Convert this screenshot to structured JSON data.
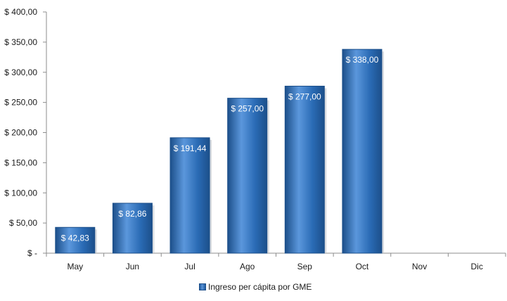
{
  "chart_data": {
    "type": "bar",
    "categories": [
      "May",
      "Jun",
      "Jul",
      "Ago",
      "Sep",
      "Oct",
      "Nov",
      "Dic"
    ],
    "series": [
      {
        "name": "Ingreso per cápita por GME",
        "values": [
          42.83,
          82.86,
          191.44,
          257.0,
          277.0,
          338.0,
          null,
          null
        ],
        "labels": [
          "$ 42,83",
          "$ 82,86",
          "$ 191,44",
          "$ 257,00",
          "$ 277,00",
          "$ 338,00",
          null,
          null
        ]
      }
    ],
    "ylim": [
      0,
      400
    ],
    "yticks": [
      0,
      50,
      100,
      150,
      200,
      250,
      300,
      350,
      400
    ],
    "ytick_labels": [
      "$ -",
      "$ 50,00",
      "$ 100,00",
      "$ 150,00",
      "$ 200,00",
      "$ 250,00",
      "$ 300,00",
      "$ 350,00",
      "$ 400,00"
    ],
    "legend_position": "bottom",
    "grid": false,
    "colors": {
      "bar": "#2a6bb5",
      "bar_light": "#5b97dc",
      "bar_dark": "#1c4f8a",
      "axis": "#8c8c8c"
    }
  }
}
